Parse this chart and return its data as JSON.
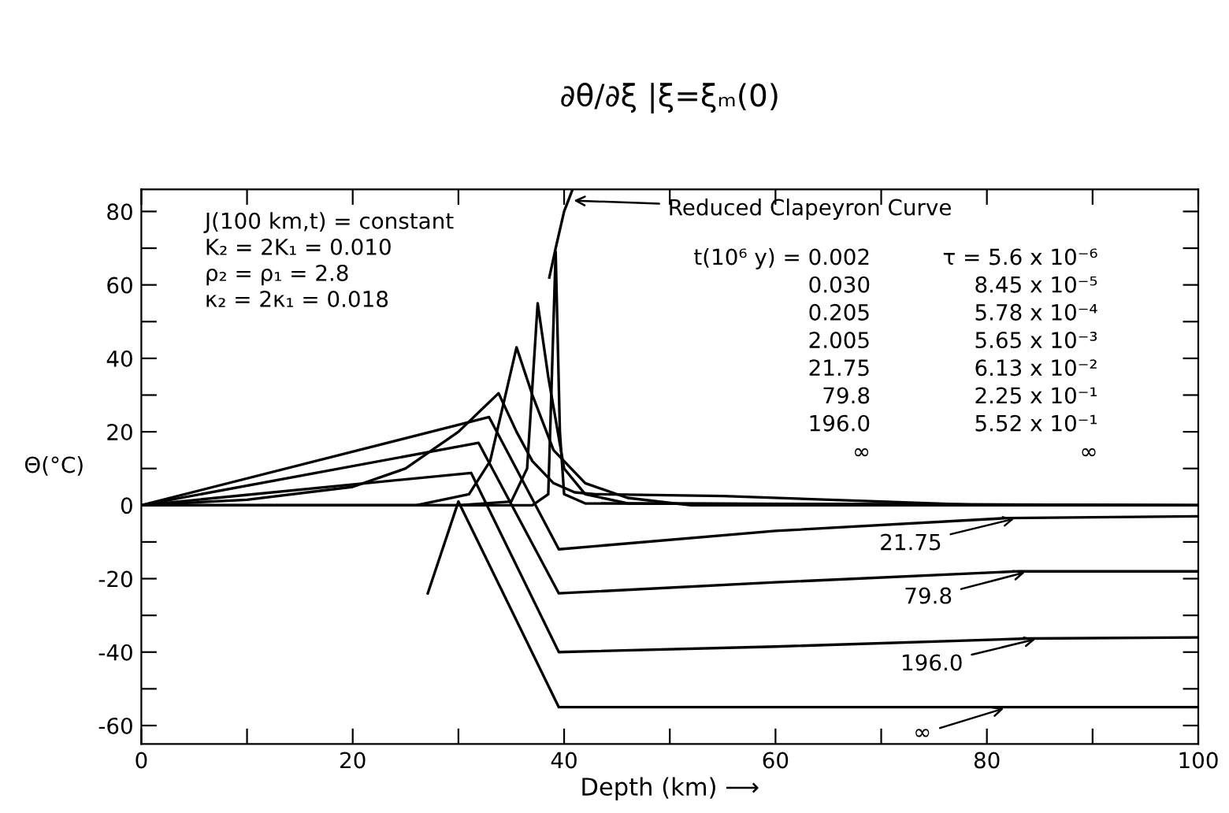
{
  "chart_data": {
    "type": "line",
    "title": "∂θ/∂ξ |ξ=ξₘ(0)",
    "xlabel": "Depth (km) ⟶",
    "ylabel": "Θ(°C)",
    "xlim": [
      0,
      100
    ],
    "ylim": [
      -65,
      86
    ],
    "xticks": [
      0,
      {
        "value": 10,
        "label": null
      },
      20,
      {
        "value": 30,
        "label": null
      },
      40,
      {
        "value": 50,
        "label": null
      },
      60,
      {
        "value": 70,
        "label": null
      },
      80,
      {
        "value": 90,
        "label": null
      },
      100
    ],
    "yticks": [
      -60,
      {
        "value": -50,
        "label": null
      },
      -40,
      {
        "value": -30,
        "label": null
      },
      -20,
      {
        "value": -10,
        "label": null
      },
      0,
      {
        "value": 10,
        "label": null
      },
      20,
      {
        "value": 30,
        "label": null
      },
      40,
      {
        "value": 50,
        "label": null
      },
      60,
      {
        "value": 70,
        "label": null
      },
      80
    ],
    "grid": false,
    "legend": false,
    "marker": "none",
    "line_style": "solid",
    "series": [
      {
        "color": "#000000",
        "x": [
          0,
          37,
          38.5,
          39.2,
          39.6,
          40,
          42,
          100
        ],
        "values": [
          0,
          0,
          3,
          69,
          20,
          3,
          0.5,
          0
        ]
      },
      {
        "color": "#000000",
        "x": [
          0,
          30,
          35,
          36.5,
          37.5,
          38.5,
          40,
          42,
          46,
          100
        ],
        "values": [
          0,
          0,
          1,
          10,
          55,
          35,
          10,
          3,
          0.5,
          0
        ]
      },
      {
        "color": "#000000",
        "x": [
          0,
          26,
          31,
          33,
          35.5,
          37,
          39,
          42,
          46,
          52,
          100
        ],
        "values": [
          0,
          0,
          3,
          12,
          43,
          30,
          15,
          6,
          2,
          0,
          0
        ]
      },
      {
        "color": "#000000",
        "x": [
          0,
          10,
          20,
          25,
          30,
          33.8,
          35.5,
          37,
          39,
          41,
          43,
          55,
          70,
          80,
          100
        ],
        "values": [
          0,
          1.5,
          5,
          10,
          20,
          30.5,
          20,
          12,
          6,
          3.5,
          3,
          2.5,
          1,
          0,
          0
        ]
      },
      {
        "color": "#000000",
        "x": [
          0,
          32.9,
          39.5,
          60,
          82,
          100
        ],
        "values": [
          0,
          24,
          -12,
          -7,
          -3.5,
          -3
        ]
      },
      {
        "color": "#000000",
        "x": [
          0,
          31.9,
          39.5,
          60,
          83,
          100
        ],
        "values": [
          0,
          17,
          -24,
          -21,
          -18,
          -18
        ]
      },
      {
        "color": "#000000",
        "x": [
          0,
          31.2,
          39.5,
          60,
          84,
          100
        ],
        "values": [
          0,
          8.8,
          -40,
          -38.5,
          -36.3,
          -36
        ]
      },
      {
        "color": "#000000",
        "x": [
          27.1,
          30,
          39.5,
          100
        ],
        "values": [
          -24,
          1,
          -55,
          -55
        ]
      },
      {
        "color": "#000000",
        "x": [
          38.6,
          39.2,
          40,
          40.8
        ],
        "values": [
          62,
          70,
          80,
          86
        ]
      }
    ],
    "annotations": [
      "J(100 km,t) = constant",
      "K₂ = 2K₁ = 0.010",
      "ρ₂ = ρ₁ = 2.8",
      "κ₂ = 2κ₁ = 0.018",
      "t(10⁶ y) = 0.002",
      "0.030",
      "0.205",
      "2.005",
      "21.75",
      "79.8",
      "196.0",
      "∞",
      "τ = 5.6 x 10⁻⁶",
      "8.45 x 10⁻⁵",
      "5.78 x 10⁻⁴",
      "5.65 x 10⁻³",
      "6.13 x 10⁻²",
      "2.25 x 10⁻¹",
      "5.52 x 10⁻¹",
      "∞",
      {
        "text": "Reduced Clapeyron Curve",
        "x": 40.5,
        "y": 83
      },
      {
        "text": "21.75",
        "x": 83,
        "y": -3.4
      },
      {
        "text": "79.8",
        "x": 84,
        "y": -18
      },
      {
        "text": "196.0",
        "x": 85,
        "y": -36.2
      },
      {
        "text": "∞",
        "x": 82,
        "y": -55
      }
    ]
  }
}
